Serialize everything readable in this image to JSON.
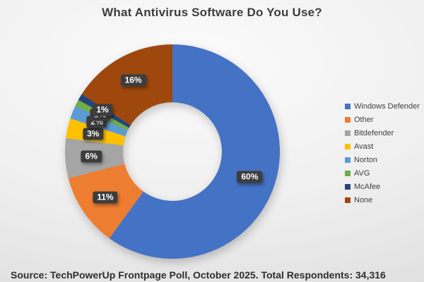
{
  "title": "What Antivirus Software Do You Use?",
  "source": "Source: TechPowerUp Frontpage Poll, October 2025. Total Respondents: 34,316",
  "chart_data": {
    "type": "pie",
    "subtype": "donut",
    "title": "What Antivirus Software Do You Use?",
    "categories": [
      "Windows Defender",
      "Other",
      "Bitdefender",
      "Avast",
      "Norton",
      "AVG",
      "McAfee",
      "None"
    ],
    "values": [
      60,
      11,
      6,
      3,
      2,
      1,
      1,
      16
    ],
    "data_labels": [
      "60%",
      "11%",
      "6%",
      "3%",
      "2%",
      "1%",
      "1%",
      "16%"
    ],
    "colors": [
      "#4472C4",
      "#ED7D31",
      "#A5A5A5",
      "#FFC000",
      "#5B9BD5",
      "#70AD47",
      "#264478",
      "#9E480E"
    ],
    "legend_position": "right",
    "start_angle_deg": 0,
    "direction": "clockwise",
    "donut_hole_ratio": 0.46,
    "label_box_color": "#3d3d3d",
    "label_text_color": "#ffffff"
  }
}
